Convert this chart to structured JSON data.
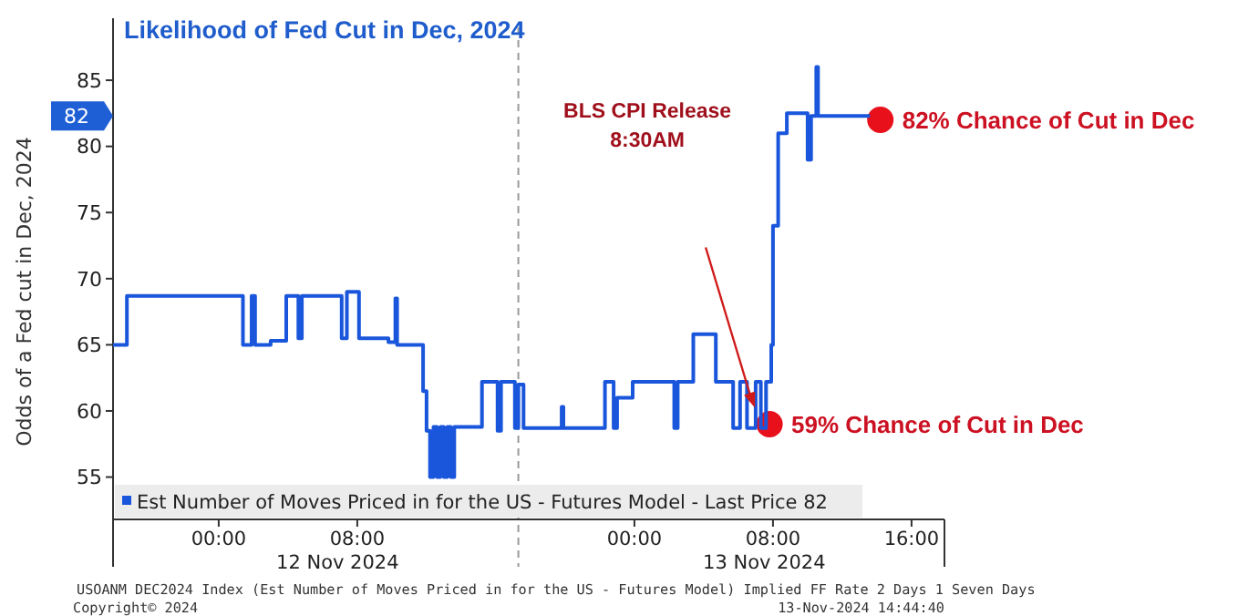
{
  "chart_data": {
    "type": "step",
    "title": "Likelihood of Fed Cut in Dec, 2024",
    "ylabel": "Odds of a Fed cut in Dec, 2024",
    "x": [
      "2024-11-11T17:54",
      "2024-11-11T18:42",
      "2024-11-12T01:24",
      "2024-11-12T01:54",
      "2024-11-12T02:06",
      "2024-11-12T03:00",
      "2024-11-12T03:54",
      "2024-11-12T04:36",
      "2024-11-12T04:48",
      "2024-11-12T07:06",
      "2024-11-12T07:24",
      "2024-11-12T08:06",
      "2024-11-12T09:48",
      "2024-11-12T10:12",
      "2024-11-12T10:18",
      "2024-11-12T11:48",
      "2024-11-12T12:00",
      "2024-11-12T12:12",
      "2024-11-12T12:24",
      "2024-11-12T12:36",
      "2024-11-12T12:48",
      "2024-11-12T13:00",
      "2024-11-12T13:12",
      "2024-11-12T13:24",
      "2024-11-12T13:36",
      "2024-11-12T15:12",
      "2024-11-12T16:06",
      "2024-11-12T16:18",
      "2024-11-12T17:06",
      "2024-11-12T17:18",
      "2024-11-12T17:36",
      "2024-11-12T19:48",
      "2024-11-12T19:54",
      "2024-11-12T22:18",
      "2024-11-12T22:48",
      "2024-11-12T23:00",
      "2024-11-12T23:54",
      "2024-11-13T02:18",
      "2024-11-13T02:30",
      "2024-11-13T03:24",
      "2024-11-13T04:42",
      "2024-11-13T05:42",
      "2024-11-13T06:06",
      "2024-11-13T06:30",
      "2024-11-13T07:00",
      "2024-11-13T07:18",
      "2024-11-13T07:36",
      "2024-11-13T07:54",
      "2024-11-13T08:00",
      "2024-11-13T08:18",
      "2024-11-13T08:48",
      "2024-11-13T10:00",
      "2024-11-13T10:12",
      "2024-11-13T10:30",
      "2024-11-13T10:36",
      "2024-11-13T13:36"
    ],
    "series": [
      {
        "name": "Est Number of Moves Priced in for the US - Futures Model - Last Price 82",
        "color": "#1a56db",
        "values": [
          65,
          68.7,
          65,
          68.7,
          65,
          65.3,
          68.7,
          65.5,
          68.7,
          65.5,
          69,
          65.5,
          65.2,
          68.5,
          65,
          61.5,
          58.5,
          55,
          58.8,
          55,
          58.8,
          55,
          58.8,
          55,
          58.8,
          62.2,
          58.5,
          62.2,
          58.7,
          62,
          58.7,
          60.3,
          58.7,
          62.2,
          58.7,
          61,
          62.2,
          58.7,
          62.2,
          65.8,
          62.2,
          58.7,
          62.2,
          58.7,
          62.2,
          58.7,
          62.2,
          65,
          74,
          81,
          82.5,
          79,
          82.3,
          86,
          82.3,
          82.3
        ]
      }
    ],
    "xlim": [
      "2024-11-11T17:54",
      "2024-11-13T17:54"
    ],
    "ylim": [
      51.8,
      89
    ],
    "xticks": [
      {
        "value": "2024-11-12T00:00",
        "label": "00:00"
      },
      {
        "value": "2024-11-12T08:00",
        "label": "08:00"
      },
      {
        "value": "2024-11-13T00:00",
        "label": "00:00"
      },
      {
        "value": "2024-11-13T08:00",
        "label": "08:00"
      },
      {
        "value": "2024-11-13T16:00",
        "label": "16:00"
      }
    ],
    "yticks": [
      55,
      60,
      65,
      70,
      75,
      80,
      85
    ],
    "ref_lines": [
      {
        "axis": "x",
        "value": "2024-11-12T17:18",
        "color": "#9a9a9a",
        "line_style": "dashed"
      }
    ],
    "legend": "bottom left",
    "grid": false,
    "annotations": [
      {
        "text": "59% Chance of Cut in Dec",
        "x": "2024-11-13T07:48",
        "y": 59
      },
      {
        "text": "82% Chance of Cut in Dec",
        "x": "2024-11-13T14:12",
        "y": 82
      },
      "BLS CPI Release\n8:30AM",
      "82",
      "12 Nov 2024",
      "13 Nov 2024",
      "USOANM DEC2024 Index (Est Number of Moves Priced in for the US - Futures Model) Implied FF Rate 2 Days 1 Seven Days",
      "Copyright© 2024",
      "13-Nov-2024 14:44:40"
    ]
  }
}
